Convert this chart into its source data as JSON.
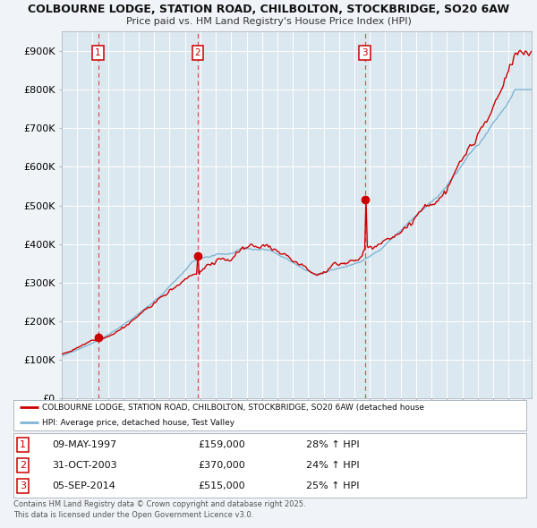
{
  "title1": "COLBOURNE LODGE, STATION ROAD, CHILBOLTON, STOCKBRIDGE, SO20 6AW",
  "title2": "Price paid vs. HM Land Registry's House Price Index (HPI)",
  "background_color": "#f0f4f8",
  "plot_bg_color": "#dce8f0",
  "sale_labels": [
    "1",
    "2",
    "3"
  ],
  "sale_pct": [
    "28% ↑ HPI",
    "24% ↑ HPI",
    "25% ↑ HPI"
  ],
  "sale_dates_display": [
    "09-MAY-1997",
    "31-OCT-2003",
    "05-SEP-2014"
  ],
  "sale_prices_display": [
    "£159,000",
    "£370,000",
    "£515,000"
  ],
  "sale_times": [
    1997.36,
    2003.83,
    2014.67
  ],
  "sale_prices": [
    159000,
    370000,
    515000
  ],
  "legend_line1": "COLBOURNE LODGE, STATION ROAD, CHILBOLTON, STOCKBRIDGE, SO20 6AW (detached house",
  "legend_line2": "HPI: Average price, detached house, Test Valley",
  "footer": "Contains HM Land Registry data © Crown copyright and database right 2025.\nThis data is licensed under the Open Government Licence v3.0.",
  "hpi_color": "#7eb6d4",
  "price_color": "#cc0000",
  "vline_color": "#dd4444",
  "ylim": [
    0,
    950000
  ],
  "yticks": [
    0,
    100000,
    200000,
    300000,
    400000,
    500000,
    600000,
    700000,
    800000,
    900000
  ],
  "ytick_labels": [
    "£0",
    "£100K",
    "£200K",
    "£300K",
    "£400K",
    "£500K",
    "£600K",
    "£700K",
    "£800K",
    "£900K"
  ],
  "xstart": 1995.0,
  "xend": 2025.5
}
